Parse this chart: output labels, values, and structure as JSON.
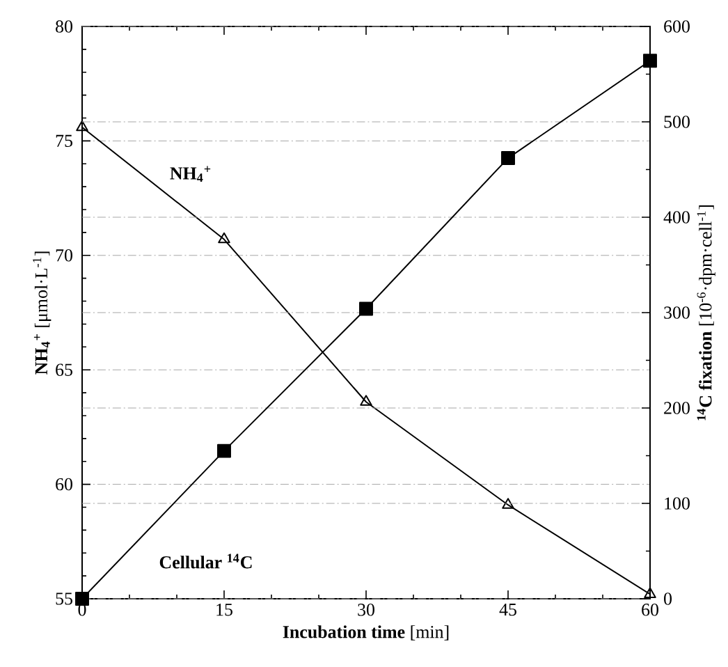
{
  "chart_data": {
    "type": "line",
    "xlabel": "**Incubation time** [min]",
    "ylabel": "**NH$_{4}$$^{+}$** [μmol·L$^{-1}$]",
    "y2label": "**$^{14}$C fixation** [10$^{-6}$·dpm·cell$^{-1}$]",
    "x": [
      0,
      15,
      30,
      45,
      60
    ],
    "series": [
      {
        "name": "NH$_{4}$$^{+}$",
        "color": "#000000",
        "marker": "triangle",
        "values": [
          75.6,
          70.7,
          63.6,
          59.1,
          55.2
        ]
      },
      {
        "name": "Cellular $^{14}$C",
        "color": "#000000",
        "marker": "square",
        "axis": "y2",
        "values": [
          0,
          155,
          304,
          462,
          564
        ]
      }
    ],
    "xlim": [
      0,
      60
    ],
    "xticks": [
      0,
      {
        "value": 5,
        "label": null
      },
      {
        "value": 10,
        "label": null
      },
      15,
      {
        "value": 20,
        "label": null
      },
      {
        "value": 25,
        "label": null
      },
      30,
      {
        "value": 35,
        "label": null
      },
      {
        "value": 40,
        "label": null
      },
      45,
      {
        "value": 50,
        "label": null
      },
      {
        "value": 55,
        "label": null
      },
      60
    ],
    "ylim": [
      55,
      80
    ],
    "yticks": [
      55,
      {
        "value": 56,
        "label": null
      },
      {
        "value": 57,
        "label": null
      },
      {
        "value": 58,
        "label": null
      },
      {
        "value": 59,
        "label": null
      },
      60,
      {
        "value": 61,
        "label": null
      },
      {
        "value": 62,
        "label": null
      },
      {
        "value": 63,
        "label": null
      },
      {
        "value": 64,
        "label": null
      },
      65,
      {
        "value": 66,
        "label": null
      },
      {
        "value": 67,
        "label": null
      },
      {
        "value": 68,
        "label": null
      },
      {
        "value": 69,
        "label": null
      },
      70,
      {
        "value": 71,
        "label": null
      },
      {
        "value": 72,
        "label": null
      },
      {
        "value": 73,
        "label": null
      },
      {
        "value": 74,
        "label": null
      },
      75,
      {
        "value": 76,
        "label": null
      },
      {
        "value": 77,
        "label": null
      },
      {
        "value": 78,
        "label": null
      },
      {
        "value": 79,
        "label": null
      },
      80
    ],
    "y2lim": [
      0,
      600
    ],
    "y2ticks": [
      0,
      {
        "value": 50,
        "label": null
      },
      100,
      {
        "value": 150,
        "label": null
      },
      200,
      {
        "value": 250,
        "label": null
      },
      300,
      {
        "value": 350,
        "label": null
      },
      400,
      {
        "value": 450,
        "label": null
      },
      500,
      {
        "value": 550,
        "label": null
      },
      600
    ],
    "grid": "y",
    "line_style": "solid"
  }
}
